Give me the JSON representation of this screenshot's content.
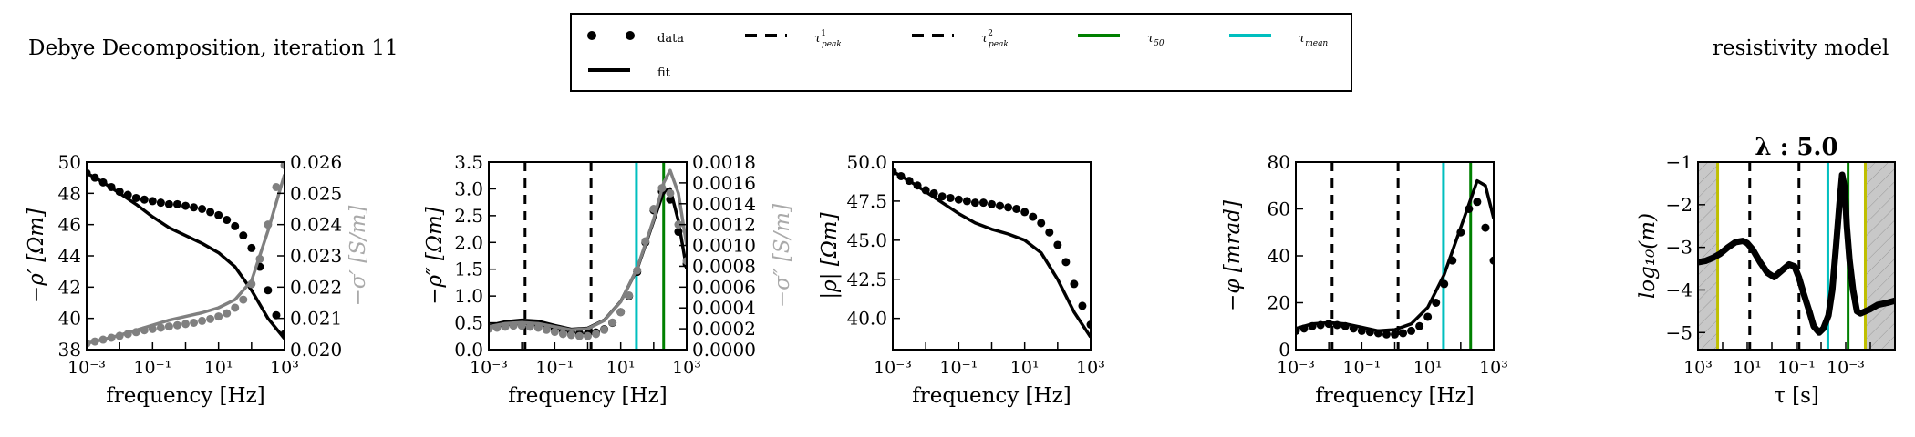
{
  "page": {
    "title_left": "Debye Decomposition, iteration 11",
    "title_right": "resistivity model"
  },
  "legend": {
    "items": [
      {
        "label": "data",
        "style": "dots",
        "color": "#000000"
      },
      {
        "label": "fit",
        "style": "solid",
        "color": "#000000"
      },
      {
        "label": "τ",
        "sub": "peak",
        "sup": "1",
        "style": "dashed",
        "color": "#000000"
      },
      {
        "label": "τ",
        "sub": "peak",
        "sup": "2",
        "style": "dashed",
        "color": "#000000"
      },
      {
        "label": "τ",
        "sub": "50",
        "sup": "",
        "style": "solid",
        "color": "#008000"
      },
      {
        "label": "τ",
        "sub": "mean",
        "sup": "",
        "style": "solid",
        "color": "#00bfbf"
      }
    ]
  },
  "colors": {
    "data": "#000000",
    "gray": "#808080",
    "tau50": "#008000",
    "taumean": "#00bfbf",
    "shade": "#c8c8c8",
    "shade_edge": "#bfbf00"
  },
  "chart_data": [
    {
      "type": "line",
      "id": "p1",
      "xlabel": "frequency [Hz]",
      "ylabel": "−ρ′ [Ωm]",
      "y2label": "−σ′ [S/m]",
      "xscale": "log",
      "xlim": [
        0.001,
        1000
      ],
      "ylim": [
        38,
        50
      ],
      "y2lim": [
        0.02,
        0.026
      ],
      "xticks": [
        "10⁻³",
        "10⁻¹",
        "10¹",
        "10³"
      ],
      "yticks": [
        "38",
        "40",
        "42",
        "44",
        "46",
        "48",
        "50"
      ],
      "y2ticks": [
        "0.020",
        "0.021",
        "0.022",
        "0.023",
        "0.024",
        "0.025",
        "0.026"
      ],
      "series": [
        {
          "name": "data",
          "axis": "y",
          "style": "dots",
          "color": "#000000",
          "x": [
            0.001,
            0.00178,
            0.00316,
            0.00562,
            0.01,
            0.0178,
            0.0316,
            0.0562,
            0.1,
            0.178,
            0.316,
            0.562,
            1,
            1.78,
            3.16,
            5.62,
            10,
            17.8,
            31.6,
            56.2,
            100,
            178,
            316,
            562,
            1000
          ],
          "y": [
            49.3,
            49.0,
            48.7,
            48.4,
            48.1,
            47.9,
            47.7,
            47.6,
            47.5,
            47.4,
            47.3,
            47.3,
            47.2,
            47.1,
            47.0,
            46.8,
            46.6,
            46.3,
            45.9,
            45.3,
            44.5,
            43.3,
            41.8,
            40.2,
            39.0
          ]
        },
        {
          "name": "fit",
          "axis": "y",
          "style": "solid",
          "color": "#000000",
          "x": [
            0.001,
            0.00316,
            0.01,
            0.0316,
            0.1,
            0.316,
            1,
            3.16,
            10,
            31.6,
            100,
            316,
            1000
          ],
          "y": [
            49.3,
            48.7,
            48.0,
            47.3,
            46.5,
            45.8,
            45.3,
            44.8,
            44.2,
            43.3,
            41.8,
            40.0,
            38.7
          ]
        },
        {
          "name": "data",
          "axis": "y2",
          "style": "dots",
          "color": "#808080",
          "x": [
            0.001,
            0.00178,
            0.00316,
            0.00562,
            0.01,
            0.0178,
            0.0316,
            0.0562,
            0.1,
            0.178,
            0.316,
            0.562,
            1,
            1.78,
            3.16,
            5.62,
            10,
            17.8,
            31.6,
            56.2,
            100,
            178,
            316,
            562,
            1000
          ],
          "y": [
            0.0202,
            0.02026,
            0.02032,
            0.02038,
            0.02044,
            0.0205,
            0.02056,
            0.02062,
            0.02066,
            0.0207,
            0.02074,
            0.02078,
            0.02082,
            0.02086,
            0.02092,
            0.02098,
            0.02106,
            0.02116,
            0.02134,
            0.0216,
            0.0221,
            0.0229,
            0.024,
            0.0252,
            0.0259
          ]
        },
        {
          "name": "fit",
          "axis": "y2",
          "style": "solid",
          "color": "#808080",
          "x": [
            0.001,
            0.00316,
            0.01,
            0.0316,
            0.1,
            0.316,
            1,
            3.16,
            10,
            31.6,
            100,
            316,
            1000
          ],
          "y": [
            0.0202,
            0.02032,
            0.02046,
            0.02062,
            0.02078,
            0.02094,
            0.02106,
            0.02118,
            0.02134,
            0.0216,
            0.0222,
            0.0238,
            0.0256
          ]
        }
      ],
      "vlines": []
    },
    {
      "type": "line",
      "id": "p2",
      "xlabel": "frequency [Hz]",
      "ylabel": "−ρ″ [Ωm]",
      "y2label": "−σ″ [S/m]",
      "xscale": "log",
      "xlim": [
        0.001,
        1000
      ],
      "ylim": [
        0,
        3.5
      ],
      "y2lim": [
        0,
        0.0018
      ],
      "xticks": [
        "10⁻³",
        "10⁻¹",
        "10¹",
        "10³"
      ],
      "yticks": [
        "0.0",
        "0.5",
        "1.0",
        "1.5",
        "2.0",
        "2.5",
        "3.0",
        "3.5"
      ],
      "y2ticks": [
        "0.0000",
        "0.0002",
        "0.0004",
        "0.0006",
        "0.0008",
        "0.0010",
        "0.0012",
        "0.0014",
        "0.0016",
        "0.0018"
      ],
      "series": [
        {
          "name": "data",
          "axis": "y",
          "style": "dots",
          "color": "#000000",
          "x": [
            0.001,
            0.00178,
            0.00316,
            0.00562,
            0.01,
            0.0178,
            0.0316,
            0.0562,
            0.1,
            0.178,
            0.316,
            0.562,
            1,
            1.78,
            3.16,
            5.62,
            10,
            17.8,
            31.6,
            56.2,
            100,
            178,
            316,
            562,
            1000
          ],
          "y": [
            0.4,
            0.43,
            0.45,
            0.46,
            0.47,
            0.46,
            0.44,
            0.41,
            0.38,
            0.35,
            0.32,
            0.3,
            0.3,
            0.32,
            0.38,
            0.5,
            0.7,
            1.0,
            1.45,
            2.0,
            2.6,
            2.95,
            2.8,
            2.2,
            1.6
          ]
        },
        {
          "name": "fit",
          "axis": "y",
          "style": "solid",
          "color": "#000000",
          "x": [
            0.001,
            0.00316,
            0.01,
            0.0316,
            0.1,
            0.316,
            1,
            3.16,
            10,
            31.6,
            100,
            200,
            316,
            562,
            1000
          ],
          "y": [
            0.45,
            0.52,
            0.55,
            0.53,
            0.45,
            0.38,
            0.4,
            0.55,
            0.9,
            1.5,
            2.4,
            2.95,
            3.0,
            2.4,
            1.5
          ]
        },
        {
          "name": "data",
          "axis": "y2",
          "style": "dots",
          "color": "#808080",
          "x": [
            0.001,
            0.00178,
            0.00316,
            0.00562,
            0.01,
            0.0178,
            0.0316,
            0.0562,
            0.1,
            0.178,
            0.316,
            0.562,
            1,
            1.78,
            3.16,
            5.62,
            10,
            17.8,
            31.6,
            56.2,
            100,
            178,
            316,
            562,
            1000
          ],
          "y": [
            0.0002,
            0.00021,
            0.00022,
            0.00023,
            0.00023,
            0.00022,
            0.00021,
            0.00019,
            0.00017,
            0.00015,
            0.00014,
            0.00013,
            0.00013,
            0.00015,
            0.00019,
            0.00026,
            0.00036,
            0.00052,
            0.00076,
            0.00104,
            0.00135,
            0.00155,
            0.0015,
            0.0012,
            0.00085
          ]
        },
        {
          "name": "fit",
          "axis": "y2",
          "style": "solid",
          "color": "#808080",
          "x": [
            0.001,
            0.00316,
            0.01,
            0.0316,
            0.1,
            0.316,
            1,
            3.16,
            10,
            31.6,
            100,
            200,
            316,
            562,
            1000
          ],
          "y": [
            0.00022,
            0.00025,
            0.00026,
            0.00025,
            0.00022,
            0.00019,
            0.0002,
            0.00028,
            0.00046,
            0.00078,
            0.00125,
            0.0016,
            0.00172,
            0.0015,
            0.001
          ]
        }
      ],
      "vlines": [
        {
          "x": 0.0126,
          "style": "dashed",
          "color": "#000000"
        },
        {
          "x": 1.26,
          "style": "dashed",
          "color": "#000000"
        },
        {
          "x": 30,
          "style": "solid",
          "color": "#00bfbf"
        },
        {
          "x": 200,
          "style": "solid",
          "color": "#008000"
        }
      ]
    },
    {
      "type": "line",
      "id": "p3",
      "xlabel": "frequency [Hz]",
      "ylabel": "|ρ| [Ωm]",
      "xscale": "log",
      "xlim": [
        0.001,
        1000
      ],
      "ylim": [
        38,
        50
      ],
      "xticks": [
        "10⁻³",
        "10⁻¹",
        "10¹",
        "10³"
      ],
      "yticks": [
        "40.0",
        "42.5",
        "45.0",
        "47.5",
        "50.0"
      ],
      "yticksAt": [
        40,
        42.5,
        45,
        47.5,
        50
      ],
      "series": [
        {
          "name": "data",
          "axis": "y",
          "style": "dots",
          "color": "#000000",
          "x": [
            0.001,
            0.00178,
            0.00316,
            0.00562,
            0.01,
            0.0178,
            0.0316,
            0.0562,
            0.1,
            0.178,
            0.316,
            0.562,
            1,
            1.78,
            3.16,
            5.62,
            10,
            17.8,
            31.6,
            56.2,
            100,
            178,
            316,
            562,
            1000
          ],
          "y": [
            49.4,
            49.1,
            48.8,
            48.5,
            48.2,
            48.0,
            47.8,
            47.7,
            47.6,
            47.5,
            47.4,
            47.4,
            47.3,
            47.2,
            47.1,
            47.0,
            46.8,
            46.5,
            46.1,
            45.5,
            44.7,
            43.6,
            42.2,
            40.8,
            39.6
          ]
        },
        {
          "name": "fit",
          "axis": "y",
          "style": "solid",
          "color": "#000000",
          "x": [
            0.001,
            0.00316,
            0.01,
            0.0316,
            0.1,
            0.316,
            1,
            3.16,
            10,
            31.6,
            100,
            316,
            1000
          ],
          "y": [
            49.4,
            48.8,
            48.1,
            47.4,
            46.7,
            46.1,
            45.7,
            45.4,
            45.0,
            44.2,
            42.5,
            40.4,
            38.8
          ]
        }
      ],
      "vlines": []
    },
    {
      "type": "line",
      "id": "p4",
      "xlabel": "frequency [Hz]",
      "ylabel": "−φ [mrad]",
      "xscale": "log",
      "xlim": [
        0.001,
        1000
      ],
      "ylim": [
        0,
        80
      ],
      "xticks": [
        "10⁻³",
        "10⁻¹",
        "10¹",
        "10³"
      ],
      "yticks": [
        "0",
        "20",
        "40",
        "60",
        "80"
      ],
      "series": [
        {
          "name": "data",
          "axis": "y",
          "style": "dots",
          "color": "#000000",
          "x": [
            0.001,
            0.00178,
            0.00316,
            0.00562,
            0.01,
            0.0178,
            0.0316,
            0.0562,
            0.1,
            0.178,
            0.316,
            0.562,
            1,
            1.78,
            3.16,
            5.62,
            10,
            17.8,
            31.6,
            56.2,
            100,
            178,
            316,
            562,
            1000
          ],
          "y": [
            8,
            9,
            10,
            10.5,
            11,
            10.5,
            10,
            9,
            8,
            7.5,
            7,
            6.5,
            6.5,
            7,
            8,
            10,
            14,
            20,
            28,
            38,
            50,
            60,
            63,
            52,
            38
          ]
        },
        {
          "name": "fit",
          "axis": "y",
          "style": "solid",
          "color": "#000000",
          "x": [
            0.001,
            0.00316,
            0.01,
            0.0316,
            0.1,
            0.316,
            1,
            3.16,
            10,
            31.6,
            100,
            316,
            562,
            1000
          ],
          "y": [
            9,
            11,
            11.5,
            11,
            9.5,
            8,
            8.5,
            11,
            18,
            32,
            52,
            72,
            70,
            56
          ]
        }
      ],
      "vlines": [
        {
          "x": 0.0126,
          "style": "dashed",
          "color": "#000000"
        },
        {
          "x": 1.26,
          "style": "dashed",
          "color": "#000000"
        },
        {
          "x": 30,
          "style": "solid",
          "color": "#00bfbf"
        },
        {
          "x": 200,
          "style": "solid",
          "color": "#008000"
        }
      ]
    },
    {
      "type": "line",
      "id": "p5",
      "title": "λ : 5.0",
      "xlabel": "τ [s]",
      "ylabel": "log₁₀(m)",
      "xscale": "log-reversed",
      "xlim": [
        1000,
        1e-05
      ],
      "ylim": [
        -5.4,
        -1
      ],
      "xticks": [
        "10³",
        "10¹",
        "10⁻¹",
        "10⁻³"
      ],
      "yticks": [
        "−5",
        "−4",
        "−3",
        "−2",
        "−1"
      ],
      "yticksAt": [
        -5,
        -4,
        -3,
        -2,
        -1
      ],
      "shaded": [
        [
          1000,
          159
        ],
        [
          0.00016,
          1e-05
        ]
      ],
      "series": [
        {
          "name": "model",
          "axis": "y",
          "style": "thick",
          "color": "#000000",
          "x": [
            1000,
            500,
            250,
            125,
            60,
            30,
            15,
            10,
            6,
            3,
            1.5,
            0.8,
            0.4,
            0.2,
            0.12,
            0.08,
            0.05,
            0.03,
            0.02,
            0.012,
            0.008,
            0.005,
            0.0035,
            0.0025,
            0.0018,
            0.0014,
            0.0011,
            0.0009,
            0.0007,
            0.0005,
            0.00035,
            0.00025,
            0.00016,
            0.0001,
            5e-05,
            2e-05,
            1e-05
          ],
          "y": [
            -3.35,
            -3.32,
            -3.25,
            -3.15,
            -3.0,
            -2.88,
            -2.85,
            -2.9,
            -3.05,
            -3.35,
            -3.6,
            -3.7,
            -3.55,
            -3.4,
            -3.45,
            -3.7,
            -4.1,
            -4.5,
            -4.85,
            -5.0,
            -4.9,
            -4.6,
            -4.0,
            -3.0,
            -2.0,
            -1.3,
            -1.6,
            -2.5,
            -3.3,
            -4.0,
            -4.5,
            -4.55,
            -4.5,
            -4.45,
            -4.35,
            -4.3,
            -4.25
          ]
        }
      ],
      "vlines": [
        {
          "x": 159,
          "style": "solid",
          "color": "#bfbf00"
        },
        {
          "x": 7.9,
          "style": "dashed",
          "color": "#000000"
        },
        {
          "x": 0.079,
          "style": "dashed",
          "color": "#000000"
        },
        {
          "x": 0.0053,
          "style": "solid",
          "color": "#00bfbf"
        },
        {
          "x": 0.0008,
          "style": "solid",
          "color": "#008000"
        },
        {
          "x": 0.00016,
          "style": "solid",
          "color": "#bfbf00"
        }
      ]
    }
  ]
}
